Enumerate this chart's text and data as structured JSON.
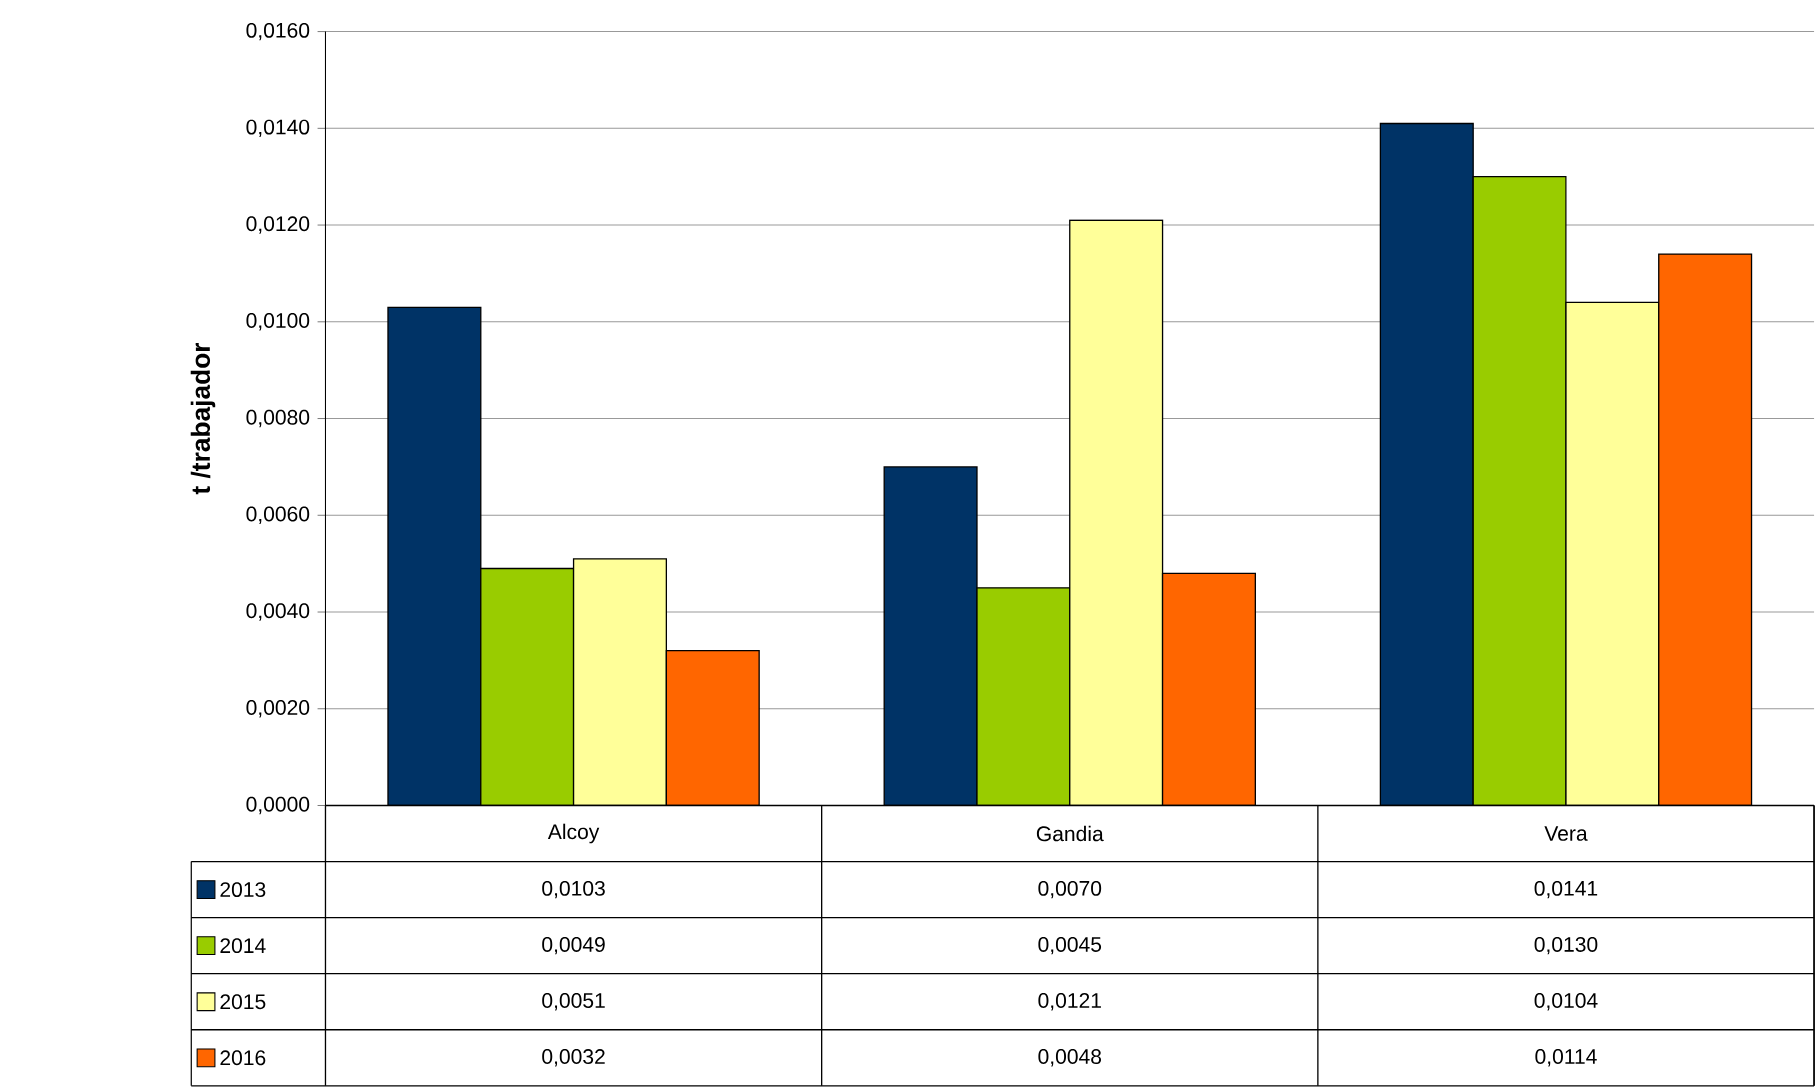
{
  "chart_data": {
    "type": "bar",
    "ylabel": "t /trabajador",
    "categories": [
      "Alcoy",
      "Gandia",
      "Vera"
    ],
    "series": [
      {
        "name": "2013",
        "color": "#003366",
        "values": [
          0.0103,
          0.007,
          0.0141
        ],
        "value_labels": [
          "0,0103",
          "0,0070",
          "0,0141"
        ]
      },
      {
        "name": "2014",
        "color": "#99cc00",
        "values": [
          0.0049,
          0.0045,
          0.013
        ],
        "value_labels": [
          "0,0049",
          "0,0045",
          "0,0130"
        ]
      },
      {
        "name": "2015",
        "color": "#ffff99",
        "values": [
          0.0051,
          0.0121,
          0.0104
        ],
        "value_labels": [
          "0,0051",
          "0,0121",
          "0,0104"
        ]
      },
      {
        "name": "2016",
        "color": "#ff6600",
        "values": [
          0.0032,
          0.0048,
          0.0114
        ],
        "value_labels": [
          "0,0032",
          "0,0048",
          "0,0114"
        ]
      }
    ],
    "ylim": [
      0,
      0.016
    ],
    "yticks": [
      {
        "value": 0,
        "label": "0,0000"
      },
      {
        "value": 0.002,
        "label": "0,0020"
      },
      {
        "value": 0.004,
        "label": "0,0040"
      },
      {
        "value": 0.006,
        "label": "0,0060"
      },
      {
        "value": 0.008,
        "label": "0,0080"
      },
      {
        "value": 0.01,
        "label": "0,0100"
      },
      {
        "value": 0.012,
        "label": "0,0120"
      },
      {
        "value": 0.014,
        "label": "0,0140"
      },
      {
        "value": 0.016,
        "label": "0,0160"
      }
    ],
    "grid": "y",
    "legend": "bottom"
  }
}
